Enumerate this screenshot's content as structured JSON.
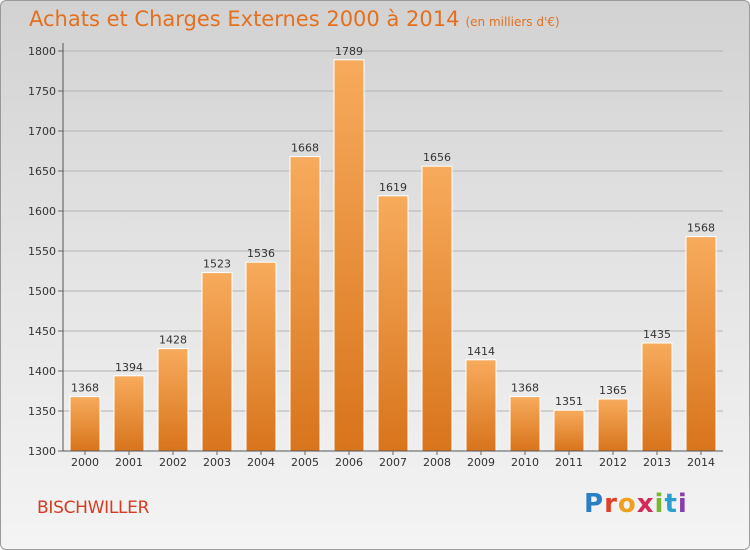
{
  "title": "Achats et Charges Externes 2000 à 2014",
  "subtitle": "(en milliers d'€)",
  "city": "BISCHWILLER",
  "logo": {
    "letters": [
      "P",
      "r",
      "o",
      "x",
      "i",
      "t",
      "i"
    ],
    "colors": [
      "#2a7fc4",
      "#e0412a",
      "#f0a020",
      "#d42a5a",
      "#7cb82f",
      "#2a9fd4",
      "#8a3fa8"
    ]
  },
  "colors": {
    "bar": "#f0943a",
    "bar_light": "#f6a95a",
    "bar_dark": "#d9741a",
    "title": "#e4701e",
    "city": "#d43b22"
  },
  "chart_data": {
    "type": "bar",
    "categories": [
      "2000",
      "2001",
      "2002",
      "2003",
      "2004",
      "2005",
      "2006",
      "2007",
      "2008",
      "2009",
      "2010",
      "2011",
      "2012",
      "2013",
      "2014"
    ],
    "values": [
      1368,
      1394,
      1428,
      1523,
      1536,
      1668,
      1789,
      1619,
      1656,
      1414,
      1368,
      1351,
      1365,
      1435,
      1568
    ],
    "ylim": [
      1300,
      1800
    ],
    "yticks": [
      1300,
      1350,
      1400,
      1450,
      1500,
      1550,
      1600,
      1650,
      1700,
      1750,
      1800
    ],
    "grid": true
  }
}
